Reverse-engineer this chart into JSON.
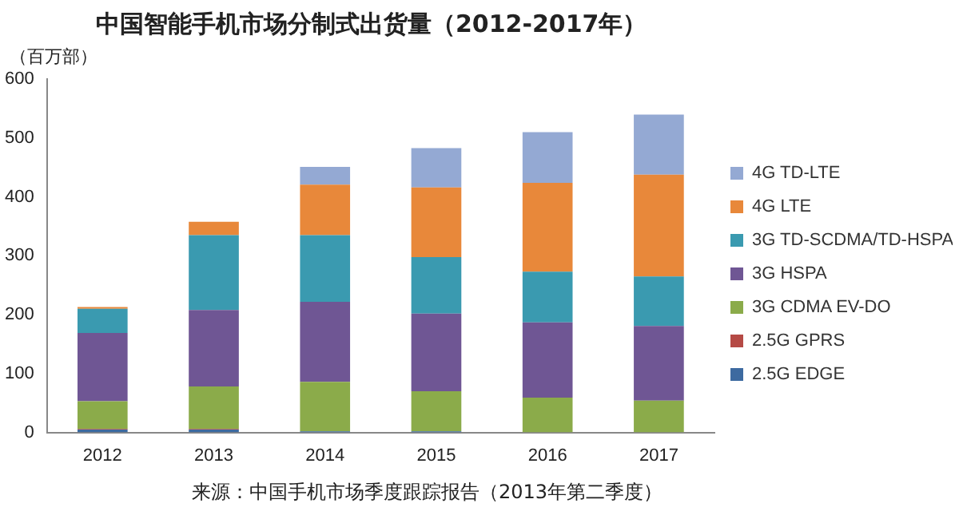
{
  "chart_data": {
    "type": "bar",
    "title": "中国智能手机市场分制式出货量（2012-2017年）",
    "ylabel": "（百万部）",
    "categories": [
      "2012",
      "2013",
      "2014",
      "2015",
      "2016",
      "2017"
    ],
    "stacked": true,
    "ylim": [
      0,
      600
    ],
    "yticks": [
      0,
      100,
      200,
      300,
      400,
      500,
      600
    ],
    "grid": false,
    "legend": "right",
    "series": [
      {
        "name": "2.5G EDGE",
        "color": "#3d6aa0",
        "values": [
          5,
          5,
          2,
          2,
          null,
          null
        ]
      },
      {
        "name": "2.5G GPRS",
        "color": "#b54a45",
        "values": [
          1,
          1,
          0,
          0,
          0,
          0
        ]
      },
      {
        "name": "3G CDMA EV-DO",
        "color": "#8bab4a",
        "values": [
          47,
          72,
          84,
          68,
          59,
          54
        ]
      },
      {
        "name": "3G HSPA",
        "color": "#6f5694",
        "values": [
          116,
          130,
          136,
          132,
          128,
          127
        ]
      },
      {
        "name": "3G TD-SCDMA/TD-HSPA",
        "color": "#3a9ab0",
        "values": [
          41,
          127,
          113,
          96,
          86,
          84
        ]
      },
      {
        "name": "4G LTE",
        "color": "#e8883a",
        "values": [
          3,
          23,
          86,
          118,
          151,
          173
        ]
      },
      {
        "name": "4G TD-LTE",
        "color": "#94a9d3",
        "values": [
          0,
          0,
          30,
          67,
          86,
          102
        ]
      }
    ],
    "annotations": [
      "来源：中国手机市场季度跟踪报告（2013年第二季度）"
    ]
  }
}
